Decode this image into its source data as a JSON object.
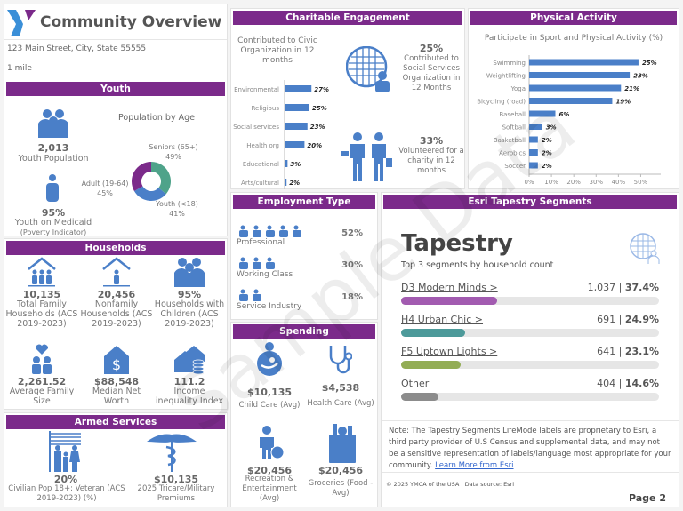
{
  "header": {
    "title": "Community Overview",
    "address": "123 Main Street, City, State 55555",
    "radius": "1 mile"
  },
  "youth": {
    "title": "Youth",
    "population_value": "2,013",
    "population_label": "Youth Population",
    "medicaid_value": "95%",
    "medicaid_label": "Youth on Medicaid",
    "medicaid_sub": "(Poverty Indicator)",
    "age_chart": {
      "type": "pie",
      "title": "Population by Age",
      "slices": [
        {
          "label": "Seniors (65+)",
          "pct": "49%",
          "value": 49,
          "color": "#4fa38a"
        },
        {
          "label": "Youth (<18)",
          "pct": "41%",
          "value": 41,
          "color": "#4a7fc8"
        },
        {
          "label": "Adult (19-64)",
          "pct": "45%",
          "value": 45,
          "color": "#7b2a8a"
        }
      ]
    }
  },
  "households": {
    "title": "Households",
    "items": [
      {
        "value": "10,135",
        "label": "Total Family Households (ACS 2019-2023)",
        "icon": "family-house-icon"
      },
      {
        "value": "20,456",
        "label": "Nonfamily Households (ACS 2019-2023)",
        "icon": "person-house-icon"
      },
      {
        "value": "95%",
        "label": "Households with Children (ACS 2019-2023)",
        "icon": "family-icon"
      },
      {
        "value": "2,261.52",
        "label": "Average Family Size",
        "icon": "family-heart-icon"
      },
      {
        "value": "$88,548",
        "label": "Median Net Worth",
        "icon": "house-dollar-icon"
      },
      {
        "value": "111.2",
        "label": "Income inequality Index",
        "icon": "house-coins-icon"
      }
    ]
  },
  "armed": {
    "title": "Armed Services",
    "items": [
      {
        "value": "20%",
        "label": "Civilian Pop 18+: Veteran (ACS 2019-2023) (%)",
        "icon": "flag-family-icon"
      },
      {
        "value": "$10,135",
        "label": "2025 Tricare/Military Premiums",
        "icon": "caduceus-icon"
      }
    ]
  },
  "charitable": {
    "title": "Charitable Engagement",
    "civic_chart": {
      "type": "bar",
      "title": "Contributed to Civic Organization in 12 months",
      "categories": [
        "Environmental",
        "Religious",
        "Social services",
        "Health org",
        "Educational",
        "Arts/cultural"
      ],
      "values": [
        27,
        25,
        23,
        20,
        3,
        2
      ],
      "labels": [
        "27%",
        "25%",
        "23%",
        "20%",
        "3%",
        "2%"
      ]
    },
    "social_value": "25%",
    "social_label": "Contributed to Social Services Organization in 12 Months",
    "volunteer_value": "33%",
    "volunteer_label": "Volunteered for a charity in 12 months"
  },
  "physical": {
    "title": "Physical Activity",
    "chart": {
      "type": "bar",
      "title": "Participate in Sport and Physical Activity (%)",
      "categories": [
        "Swimming",
        "Weightlifting",
        "Yoga",
        "Bicycling (road)",
        "Baseball",
        "Softball",
        "Basketball",
        "Aerobics",
        "Soccer"
      ],
      "values": [
        25,
        23,
        21,
        19,
        6,
        3,
        2,
        2,
        2
      ],
      "labels": [
        "25%",
        "23%",
        "21%",
        "19%",
        "6%",
        "3%",
        "2%",
        "2%",
        "2%"
      ],
      "xticks": [
        "0%",
        "10%",
        "20%",
        "30%",
        "40%",
        "50%"
      ],
      "xlim": [
        0,
        55
      ]
    }
  },
  "employment": {
    "title": "Employment Type",
    "items": [
      {
        "label": "Professional",
        "value": "52%",
        "icons": 5
      },
      {
        "label": "Working Class",
        "value": "30%",
        "icons": 3
      },
      {
        "label": "Service Industry",
        "value": "18%",
        "icons": 2
      }
    ]
  },
  "spending": {
    "title": "Spending",
    "items": [
      {
        "value": "$10,135",
        "label": "Child Care (Avg)"
      },
      {
        "value": "$4,538",
        "label": "Health Care (Avg)"
      },
      {
        "value": "$20,456",
        "label": "Recreation & Entertainment (Avg)"
      },
      {
        "value": "$20,456",
        "label": "Groceries (Food - Avg)"
      }
    ]
  },
  "tapestry": {
    "section_title": "Esri Tapestry Segments",
    "title": "Tapestry",
    "subtitle": "Top 3 segments by household count",
    "segments": [
      {
        "name": "D3 Modern Minds >",
        "count": "1,037",
        "pct": "37.4%",
        "fraction": 0.374,
        "color": "#a25bb0",
        "link": true
      },
      {
        "name": "H4 Urban Chic >",
        "count": "691",
        "pct": "24.9%",
        "fraction": 0.249,
        "color": "#4d9a9a",
        "link": true
      },
      {
        "name": "F5 Uptown Lights >",
        "count": "641",
        "pct": "23.1%",
        "fraction": 0.231,
        "color": "#93ad55",
        "link": true
      },
      {
        "name": "Other",
        "count": "404",
        "pct": "14.6%",
        "fraction": 0.146,
        "color": "#8c8c8c",
        "link": false
      }
    ],
    "note": "Note: The Tapestry Segments LifeMode labels are proprietary to Esri, a third party provider of U.S Census and supplemental data, and may not be a sensitive representation of labels/language most appropriate for your community.",
    "note_link": "Learn More from Esri"
  },
  "footer": {
    "copyright": "© 2025 YMCA of the USA | Data source: Esri",
    "page": "Page 2"
  },
  "watermark": "Sample Data",
  "colors": {
    "purple": "#7b2a8a",
    "blue": "#4a7fc8"
  }
}
